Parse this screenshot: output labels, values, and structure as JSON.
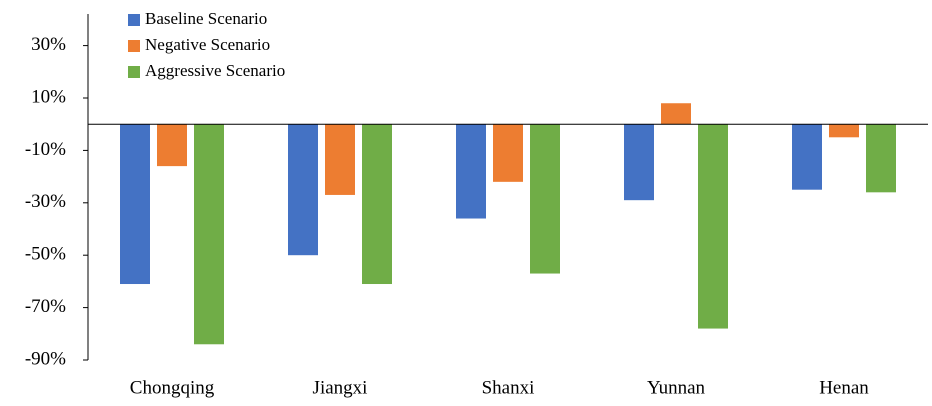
{
  "chart_data": {
    "type": "bar",
    "categories": [
      "Chongqing",
      "Jiangxi",
      "Shanxi",
      "Yunnan",
      "Henan"
    ],
    "series": [
      {
        "name": "Baseline Scenario",
        "color": "#4472c4",
        "values": [
          -61,
          -50,
          -36,
          -29,
          -25
        ]
      },
      {
        "name": "Negative  Scenario",
        "color": "#ed7d31",
        "values": [
          -16,
          -27,
          -22,
          8,
          -5
        ]
      },
      {
        "name": "Aggressive Scenario",
        "color": "#70ad47",
        "values": [
          -84,
          -61,
          -57,
          -78,
          -26
        ]
      }
    ],
    "ylim": [
      -90,
      40
    ],
    "yticks": [
      {
        "value": 30,
        "label": "30%"
      },
      {
        "value": 10,
        "label": "10%"
      },
      {
        "value": -10,
        "label": "-10%"
      },
      {
        "value": -30,
        "label": "-30%"
      },
      {
        "value": -50,
        "label": "-50%"
      },
      {
        "value": -70,
        "label": "-70%"
      },
      {
        "value": -90,
        "label": "-90%"
      }
    ],
    "grid": false
  }
}
